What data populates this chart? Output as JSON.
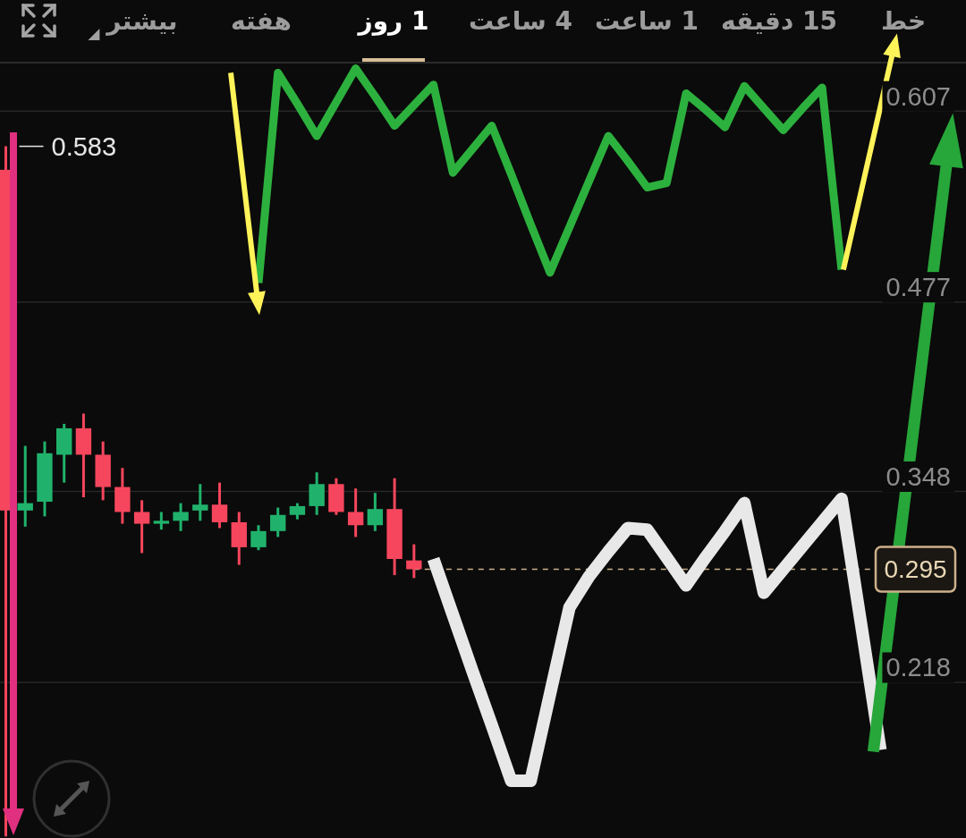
{
  "chart_data": {
    "type": "candlestick",
    "categories": [
      null,
      null,
      null,
      null,
      null,
      null,
      null,
      null,
      null,
      null,
      null,
      null,
      null,
      null,
      null,
      null,
      null,
      null,
      null,
      null,
      null,
      null,
      null,
      null,
      null,
      null,
      null,
      null,
      null,
      null,
      null,
      null,
      null,
      null,
      null,
      null,
      null,
      null,
      null,
      null,
      null,
      null,
      null,
      null,
      null,
      null
    ],
    "ohlc": [
      [
        0.567,
        0.583,
        0.113,
        0.335
      ],
      [
        0.335,
        0.379,
        0.324,
        0.34
      ],
      [
        0.341,
        0.382,
        0.331,
        0.374
      ],
      [
        0.373,
        0.394,
        0.354,
        0.391
      ],
      [
        0.391,
        0.401,
        0.344,
        0.373
      ],
      [
        0.373,
        0.382,
        0.342,
        0.351
      ],
      [
        0.351,
        0.364,
        0.326,
        0.334
      ],
      [
        0.334,
        0.342,
        0.306,
        0.326
      ],
      [
        0.326,
        0.334,
        0.322,
        0.328
      ],
      [
        0.328,
        0.34,
        0.321,
        0.334
      ],
      [
        0.335,
        0.353,
        0.328,
        0.339
      ],
      [
        0.339,
        0.354,
        0.323,
        0.327
      ],
      [
        0.327,
        0.334,
        0.298,
        0.31
      ],
      [
        0.31,
        0.325,
        0.308,
        0.321
      ],
      [
        0.321,
        0.337,
        0.317,
        0.332
      ],
      [
        0.332,
        0.34,
        0.329,
        0.338
      ],
      [
        0.338,
        0.361,
        0.332,
        0.353
      ],
      [
        0.353,
        0.357,
        0.332,
        0.334
      ],
      [
        0.334,
        0.35,
        0.317,
        0.325
      ],
      [
        0.325,
        0.347,
        0.321,
        0.336
      ],
      [
        0.336,
        0.357,
        0.291,
        0.302
      ],
      [
        0.301,
        0.312,
        0.289,
        0.295
      ],
      null,
      null,
      null,
      null,
      null,
      null,
      null,
      null,
      null,
      null,
      null,
      null,
      null,
      null,
      null,
      null,
      null,
      null,
      null,
      null,
      null,
      null,
      null,
      null
    ],
    "colors": [
      "#f6465d",
      "#20b26c",
      "#20b26c",
      "#20b26c",
      "#f6465d",
      "#f6465d",
      "#f6465d",
      "#f6465d",
      "#20b26c",
      "#20b26c",
      "#20b26c",
      "#f6465d",
      "#f6465d",
      "#20b26c",
      "#20b26c",
      "#20b26c",
      "#20b26c",
      "#f6465d",
      "#f6465d",
      "#20b26c",
      "#f6465d",
      "#f6465d",
      null,
      null,
      null,
      null,
      null,
      null,
      null,
      null,
      null,
      null,
      null,
      null,
      null,
      null,
      null,
      null,
      null,
      null,
      null,
      null,
      null,
      null,
      null,
      null
    ],
    "series": [
      {
        "type": "line",
        "color": "#2db13e",
        "values": [
          null,
          null,
          null,
          null,
          null,
          null,
          null,
          null,
          null,
          null,
          null,
          null,
          null,
          0.49,
          0.633,
          0.612,
          0.59,
          0.613,
          0.636,
          0.617,
          0.597,
          0.611,
          0.625,
          0.565,
          0.581,
          0.597,
          0.564,
          0.53,
          0.497,
          0.528,
          0.559,
          0.59,
          0.573,
          0.555,
          0.558,
          0.619,
          0.608,
          0.596,
          0.624,
          0.609,
          0.594,
          0.609,
          0.623,
          0.499,
          null,
          null
        ]
      },
      {
        "type": "line",
        "color": "#e8e8e8",
        "values": [
          null,
          null,
          null,
          null,
          null,
          null,
          null,
          null,
          null,
          null,
          null,
          null,
          null,
          null,
          null,
          null,
          null,
          null,
          null,
          null,
          null,
          null,
          0.302,
          0.264,
          0.226,
          0.189,
          0.151,
          0.151,
          0.21,
          0.269,
          0.29,
          0.307,
          0.323,
          0.322,
          0.303,
          0.284,
          0.303,
          0.321,
          0.34,
          0.279,
          0.295,
          0.311,
          0.327,
          0.343,
          0.258,
          0.172
        ]
      }
    ],
    "ylim": [
      0.112,
      0.64
    ],
    "yticks": [
      0.218,
      0.348,
      0.477,
      0.607
    ],
    "grid": "y",
    "tick_labels": "y",
    "ref_lines": [
      {
        "axis": "y",
        "value": 0.295,
        "label": "0.295",
        "color": "#cdb08a",
        "line_style": "dashed"
      }
    ],
    "annotations": [
      "خط",
      "15 دقیقه",
      "1 ساعت",
      "4 ساعت",
      "1 روز",
      "هفته",
      "بیشتر",
      "0.583"
    ]
  }
}
